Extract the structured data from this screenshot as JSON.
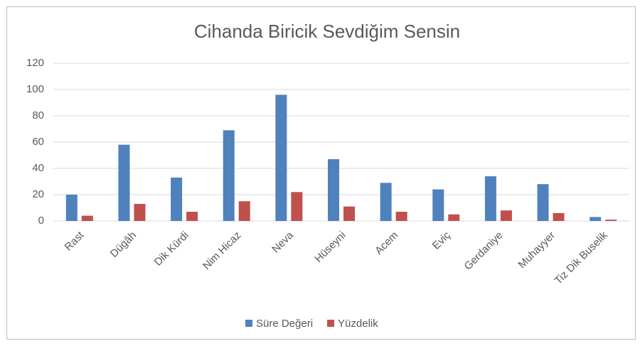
{
  "chart_data": {
    "type": "bar",
    "title": "Cihanda Biricik Sevdiğim Sensin",
    "categories": [
      "Rast",
      "Dügâh",
      "Dik Kürdi",
      "Nim Hicaz",
      "Neva",
      "Hüseyni",
      "Acem",
      "Eviç",
      "Gerdaniye",
      "Muhayyer",
      "Tiz Dik Buselik"
    ],
    "series": [
      {
        "name": "Süre Değeri",
        "color": "#4f81bd",
        "values": [
          20,
          58,
          33,
          69,
          96,
          47,
          29,
          24,
          34,
          28,
          3
        ]
      },
      {
        "name": "Yüzdelik",
        "color": "#c0504d",
        "values": [
          4,
          13,
          7,
          15,
          22,
          11,
          7,
          5,
          8,
          6,
          1
        ]
      }
    ],
    "ylim": [
      0,
      120
    ],
    "yticks": [
      0,
      20,
      40,
      60,
      80,
      100,
      120
    ],
    "grid": true,
    "legend": "bottom"
  }
}
